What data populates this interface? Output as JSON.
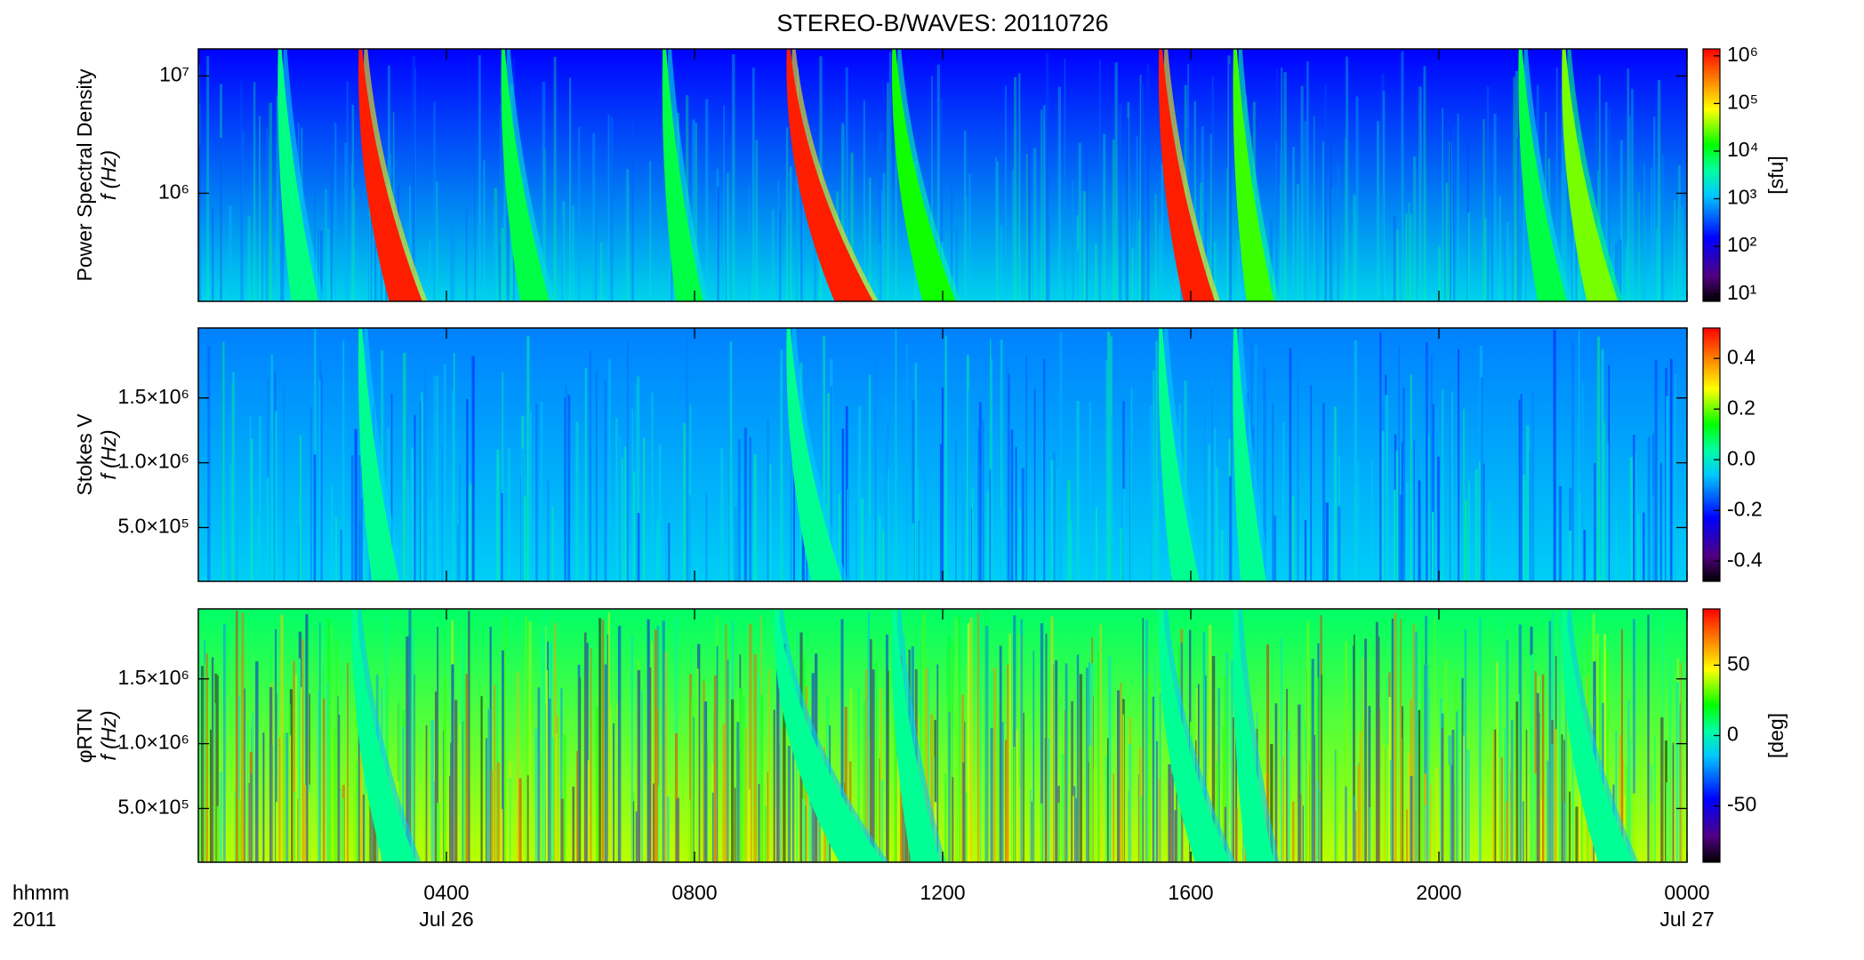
{
  "chart_data": [
    {
      "type": "heatmap",
      "title": "STEREO-B/WAVES: 20110726",
      "ylabel": [
        "Power Spectral Density",
        "f (Hz)"
      ],
      "ylog": true,
      "ylim": [
        120000,
        17000000
      ],
      "yticks": [
        {
          "value": 1000000,
          "label": "10⁶"
        },
        {
          "value": 10000000,
          "label": "10⁷"
        }
      ],
      "colorbar": {
        "label": "[sfu]",
        "log": true,
        "lim": [
          7,
          1400000
        ],
        "ticks": [
          {
            "value": 10,
            "label": "10¹"
          },
          {
            "value": 100,
            "label": "10²"
          },
          {
            "value": 1000,
            "label": "10³"
          },
          {
            "value": 10000,
            "label": "10⁴"
          },
          {
            "value": 100000,
            "label": "10⁵"
          },
          {
            "value": 1000000,
            "label": "10⁶"
          }
        ]
      },
      "background": [
        150,
        1500
      ],
      "bursts": [
        {
          "time": 1.3,
          "drift": 0.3,
          "peak": 5000
        },
        {
          "time": 2.6,
          "drift": 0.6,
          "peak": 1000000
        },
        {
          "time": 4.9,
          "drift": 0.4,
          "peak": 8000
        },
        {
          "time": 7.5,
          "drift": 0.3,
          "peak": 8000
        },
        {
          "time": 9.5,
          "drift": 0.9,
          "peak": 1000000
        },
        {
          "time": 11.2,
          "drift": 0.6,
          "peak": 15000
        },
        {
          "time": 15.5,
          "drift": 0.5,
          "peak": 1000000
        },
        {
          "time": 16.7,
          "drift": 0.3,
          "peak": 20000
        },
        {
          "time": 21.3,
          "drift": 0.4,
          "peak": 8000
        },
        {
          "time": 22.0,
          "drift": 0.5,
          "peak": 30000
        }
      ]
    },
    {
      "type": "heatmap",
      "ylabel": [
        "Stokes V",
        "f (Hz)"
      ],
      "ylog": false,
      "ylim": [
        85000,
        2040000
      ],
      "yticks": [
        {
          "value": 500000,
          "label": "5.0×10⁵"
        },
        {
          "value": 1000000,
          "label": "1.0×10⁶"
        },
        {
          "value": 1500000,
          "label": "1.5×10⁶"
        }
      ],
      "colorbar": {
        "label": "",
        "log": false,
        "lim": [
          -0.48,
          0.52
        ],
        "ticks": [
          -0.4,
          -0.2,
          {
            "value": 0,
            "label": "0.0"
          },
          0.2,
          0.4
        ]
      },
      "background": [
        -0.12,
        -0.05
      ],
      "bursts": [
        {
          "time": 2.6,
          "drift": 0.3,
          "peak": 0.05
        },
        {
          "time": 9.5,
          "drift": 0.5,
          "peak": 0.05
        },
        {
          "time": 15.5,
          "drift": 0.3,
          "peak": 0.05
        },
        {
          "time": 16.7,
          "drift": 0.2,
          "peak": 0.05
        }
      ]
    },
    {
      "type": "heatmap",
      "ylabel": [
        "φRTN",
        "f (Hz)"
      ],
      "ylog": false,
      "ylim": [
        85000,
        2040000
      ],
      "yticks": [
        {
          "value": 500000,
          "label": "5.0×10⁵"
        },
        {
          "value": 1000000,
          "label": "1.0×10⁶"
        },
        {
          "value": 1500000,
          "label": "1.5×10⁶"
        }
      ],
      "colorbar": {
        "label": "[deg]",
        "log": false,
        "lim": [
          -90,
          90
        ],
        "ticks": [
          -50,
          0,
          50
        ]
      },
      "background": [
        10,
        40
      ],
      "bursts": [
        {
          "time": 2.5,
          "drift": 0.6,
          "peak": 5
        },
        {
          "time": 9.3,
          "drift": 1.2,
          "peak": 5
        },
        {
          "time": 11.2,
          "drift": 0.4,
          "peak": 5
        },
        {
          "time": 15.5,
          "drift": 0.7,
          "peak": 5
        },
        {
          "time": 16.7,
          "drift": 0.3,
          "peak": 5
        },
        {
          "time": 22.0,
          "drift": 0.7,
          "peak": 5
        }
      ],
      "xlim": [
        0,
        24
      ],
      "xticks": [
        {
          "value": 4,
          "label": "0400"
        },
        {
          "value": 8,
          "label": "0800"
        },
        {
          "value": 12,
          "label": "1200"
        },
        {
          "value": 16,
          "label": "1600"
        },
        {
          "value": 20,
          "label": "2000"
        },
        {
          "value": 24,
          "label": "0000"
        }
      ],
      "x_dates": [
        {
          "value": 4,
          "label": "Jul 26"
        },
        {
          "value": 24,
          "label": "Jul 27"
        }
      ],
      "x_corner": [
        "hhmm",
        "2011"
      ]
    }
  ]
}
